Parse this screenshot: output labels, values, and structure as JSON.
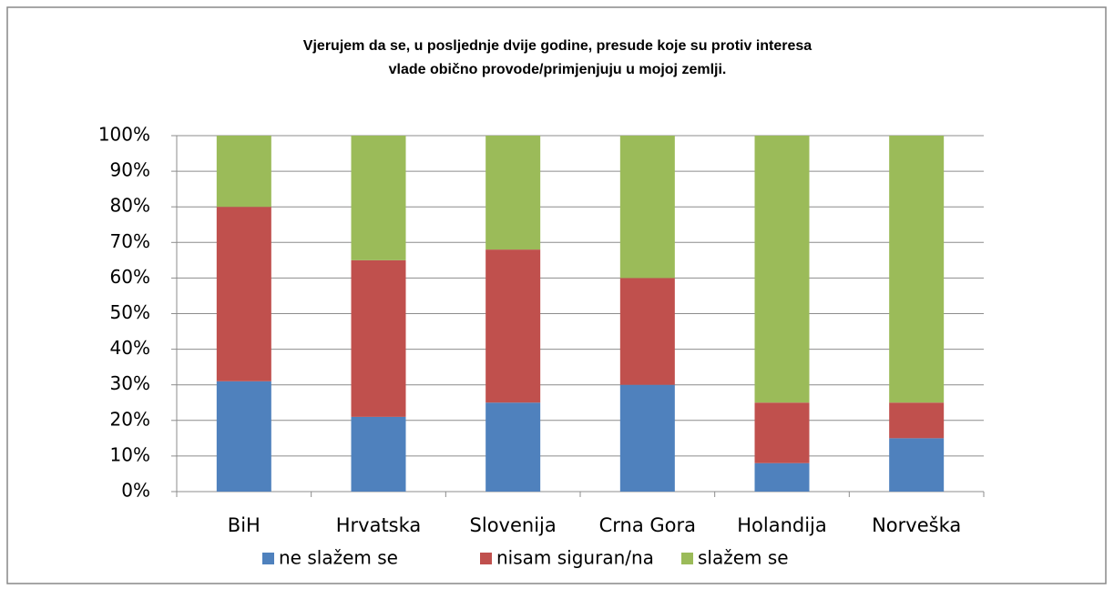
{
  "chart_data": {
    "type": "stacked_bar",
    "title": [
      "Vjerujem da se, u posljednje dvije godine, presude koje su protiv interesa",
      "vlade obično provode/primjenjuju u mojoj zemlji."
    ],
    "categories": [
      "BiH",
      "Hrvatska",
      "Slovenija",
      "Crna Gora",
      "Holandija",
      "Norveška"
    ],
    "series": [
      {
        "name": "ne slažem se",
        "color": "#4f81bd",
        "values": [
          31,
          21,
          25,
          30,
          8,
          15
        ]
      },
      {
        "name": "nisam siguran/na",
        "color": "#c0504d",
        "values": [
          49,
          44,
          43,
          30,
          17,
          10
        ]
      },
      {
        "name": "slažem se",
        "color": "#9bbb59",
        "values": [
          20,
          35,
          32,
          40,
          75,
          75
        ]
      }
    ],
    "ylim": [
      0,
      100
    ],
    "yticks": [
      {
        "value": 0,
        "label": "0%"
      },
      {
        "value": 10,
        "label": "10%"
      },
      {
        "value": 20,
        "label": "20%"
      },
      {
        "value": 30,
        "label": "30%"
      },
      {
        "value": 40,
        "label": "40%"
      },
      {
        "value": 50,
        "label": "50%"
      },
      {
        "value": 60,
        "label": "60%"
      },
      {
        "value": 70,
        "label": "70%"
      },
      {
        "value": 80,
        "label": "80%"
      },
      {
        "value": 90,
        "label": "90%"
      },
      {
        "value": 100,
        "label": "100%"
      }
    ],
    "grid": true,
    "legend": "bottom"
  }
}
